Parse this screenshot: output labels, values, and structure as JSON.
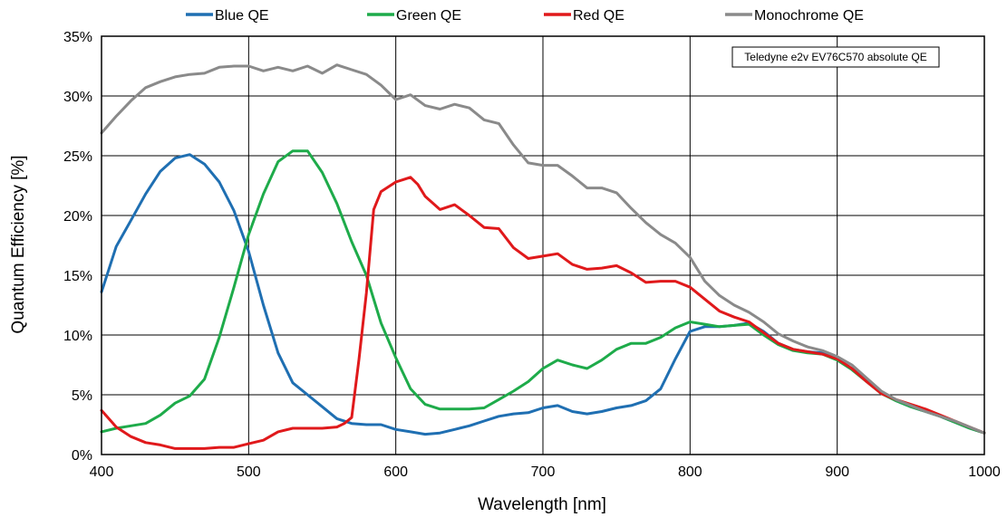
{
  "chart_data": {
    "type": "line",
    "title": "",
    "xlabel": "Wavelength [nm]",
    "ylabel": "Quantum Efficiency [%]",
    "xlim": [
      400,
      1000
    ],
    "ylim": [
      0,
      35
    ],
    "x_ticks": [
      400,
      500,
      600,
      700,
      800,
      900,
      1000
    ],
    "y_ticks": [
      0,
      5,
      10,
      15,
      20,
      25,
      30,
      35
    ],
    "y_tick_labels": [
      "0%",
      "5%",
      "10%",
      "15%",
      "20%",
      "25%",
      "30%",
      "35%"
    ],
    "grid": true,
    "legend_position": "top",
    "annotation": "Teledyne e2v EV76C570 absolute QE",
    "series": [
      {
        "name": "Blue QE",
        "color": "#1f6fb2",
        "x": [
          400,
          405,
          410,
          420,
          430,
          440,
          450,
          460,
          470,
          480,
          490,
          500,
          510,
          520,
          530,
          540,
          550,
          560,
          570,
          580,
          590,
          600,
          610,
          620,
          630,
          640,
          650,
          660,
          670,
          680,
          690,
          700,
          710,
          720,
          730,
          740,
          750,
          760,
          770,
          780,
          790,
          800,
          810,
          820,
          830,
          840,
          850,
          860,
          870,
          880,
          890,
          900,
          910,
          920,
          930,
          940,
          950,
          960,
          970,
          980,
          990,
          1000
        ],
        "y": [
          13.6,
          15.5,
          17.4,
          19.6,
          21.8,
          23.7,
          24.8,
          25.1,
          24.3,
          22.8,
          20.4,
          17.0,
          12.5,
          8.5,
          6.0,
          5.0,
          4.0,
          3.0,
          2.6,
          2.5,
          2.5,
          2.1,
          1.9,
          1.7,
          1.8,
          2.1,
          2.4,
          2.8,
          3.2,
          3.4,
          3.5,
          3.9,
          4.1,
          3.6,
          3.4,
          3.6,
          3.9,
          4.1,
          4.5,
          5.5,
          8.0,
          10.3,
          10.7,
          10.7,
          10.8,
          11.0,
          10.3,
          9.3,
          8.8,
          8.6,
          8.5,
          8.0,
          7.2,
          6.3,
          5.2,
          4.5,
          4.0,
          3.6,
          3.2,
          2.7,
          2.2,
          1.8
        ]
      },
      {
        "name": "Green QE",
        "color": "#1eab4a",
        "x": [
          400,
          410,
          420,
          430,
          440,
          450,
          460,
          470,
          480,
          490,
          500,
          510,
          520,
          530,
          540,
          550,
          560,
          570,
          580,
          590,
          600,
          610,
          620,
          630,
          640,
          650,
          660,
          670,
          680,
          690,
          700,
          710,
          720,
          730,
          740,
          750,
          760,
          770,
          780,
          790,
          800,
          810,
          820,
          830,
          840,
          850,
          860,
          870,
          880,
          890,
          900,
          910,
          920,
          930,
          940,
          950,
          960,
          970,
          980,
          990,
          1000
        ],
        "y": [
          1.9,
          2.2,
          2.4,
          2.6,
          3.3,
          4.3,
          4.9,
          6.3,
          9.8,
          14.0,
          18.4,
          21.8,
          24.5,
          25.4,
          25.4,
          23.6,
          21.0,
          17.8,
          15.0,
          11.0,
          8.1,
          5.5,
          4.2,
          3.8,
          3.8,
          3.8,
          3.9,
          4.6,
          5.3,
          6.1,
          7.2,
          7.9,
          7.5,
          7.2,
          7.9,
          8.8,
          9.3,
          9.3,
          9.8,
          10.6,
          11.1,
          10.9,
          10.7,
          10.8,
          10.9,
          10.0,
          9.2,
          8.7,
          8.5,
          8.4,
          7.9,
          7.1,
          6.1,
          5.1,
          4.5,
          4.0,
          3.6,
          3.2,
          2.7,
          2.2,
          1.8
        ]
      },
      {
        "name": "Red QE",
        "color": "#e0191b",
        "x": [
          400,
          405,
          410,
          420,
          430,
          440,
          450,
          460,
          470,
          480,
          490,
          500,
          510,
          520,
          530,
          540,
          550,
          560,
          565,
          570,
          575,
          580,
          585,
          590,
          600,
          605,
          610,
          615,
          620,
          630,
          640,
          650,
          660,
          670,
          680,
          690,
          700,
          710,
          720,
          730,
          740,
          750,
          760,
          770,
          780,
          790,
          800,
          810,
          820,
          830,
          840,
          850,
          860,
          870,
          880,
          890,
          900,
          910,
          920,
          930,
          940,
          950,
          960,
          970,
          980,
          990,
          1000
        ],
        "y": [
          3.7,
          3.0,
          2.3,
          1.5,
          1.0,
          0.8,
          0.5,
          0.5,
          0.5,
          0.6,
          0.6,
          0.9,
          1.2,
          1.9,
          2.2,
          2.2,
          2.2,
          2.3,
          2.6,
          3.1,
          8.0,
          13.5,
          20.5,
          22.0,
          22.8,
          23.0,
          23.2,
          22.6,
          21.6,
          20.5,
          20.9,
          20.0,
          19.0,
          18.9,
          17.3,
          16.4,
          16.6,
          16.8,
          15.9,
          15.5,
          15.6,
          15.8,
          15.2,
          14.4,
          14.5,
          14.5,
          14.0,
          13.0,
          12.0,
          11.5,
          11.1,
          10.2,
          9.3,
          8.8,
          8.6,
          8.4,
          8.0,
          7.2,
          6.1,
          5.1,
          4.6,
          4.2,
          3.8,
          3.3,
          2.8,
          2.3,
          1.8
        ]
      },
      {
        "name": "Monochrome QE",
        "color": "#8a8a8a",
        "x": [
          400,
          410,
          420,
          430,
          440,
          450,
          460,
          470,
          480,
          490,
          500,
          510,
          520,
          530,
          540,
          550,
          560,
          570,
          580,
          590,
          600,
          610,
          620,
          630,
          640,
          650,
          660,
          670,
          680,
          690,
          700,
          710,
          720,
          730,
          740,
          750,
          760,
          770,
          780,
          790,
          800,
          810,
          820,
          830,
          840,
          850,
          860,
          870,
          880,
          890,
          900,
          910,
          920,
          930,
          940,
          950,
          960,
          970,
          980,
          990,
          1000
        ],
        "y": [
          26.9,
          28.3,
          29.6,
          30.7,
          31.2,
          31.6,
          31.8,
          31.9,
          32.4,
          32.5,
          32.5,
          32.1,
          32.4,
          32.1,
          32.5,
          31.9,
          32.6,
          32.2,
          31.8,
          30.9,
          29.7,
          30.1,
          29.2,
          28.9,
          29.3,
          29.0,
          28.0,
          27.7,
          25.9,
          24.4,
          24.2,
          24.2,
          23.3,
          22.3,
          22.3,
          21.9,
          20.6,
          19.4,
          18.4,
          17.7,
          16.5,
          14.5,
          13.3,
          12.5,
          11.9,
          11.1,
          10.1,
          9.5,
          9.0,
          8.7,
          8.2,
          7.5,
          6.4,
          5.3,
          4.6,
          4.1,
          3.6,
          3.2,
          2.8,
          2.3,
          1.8
        ]
      }
    ]
  }
}
